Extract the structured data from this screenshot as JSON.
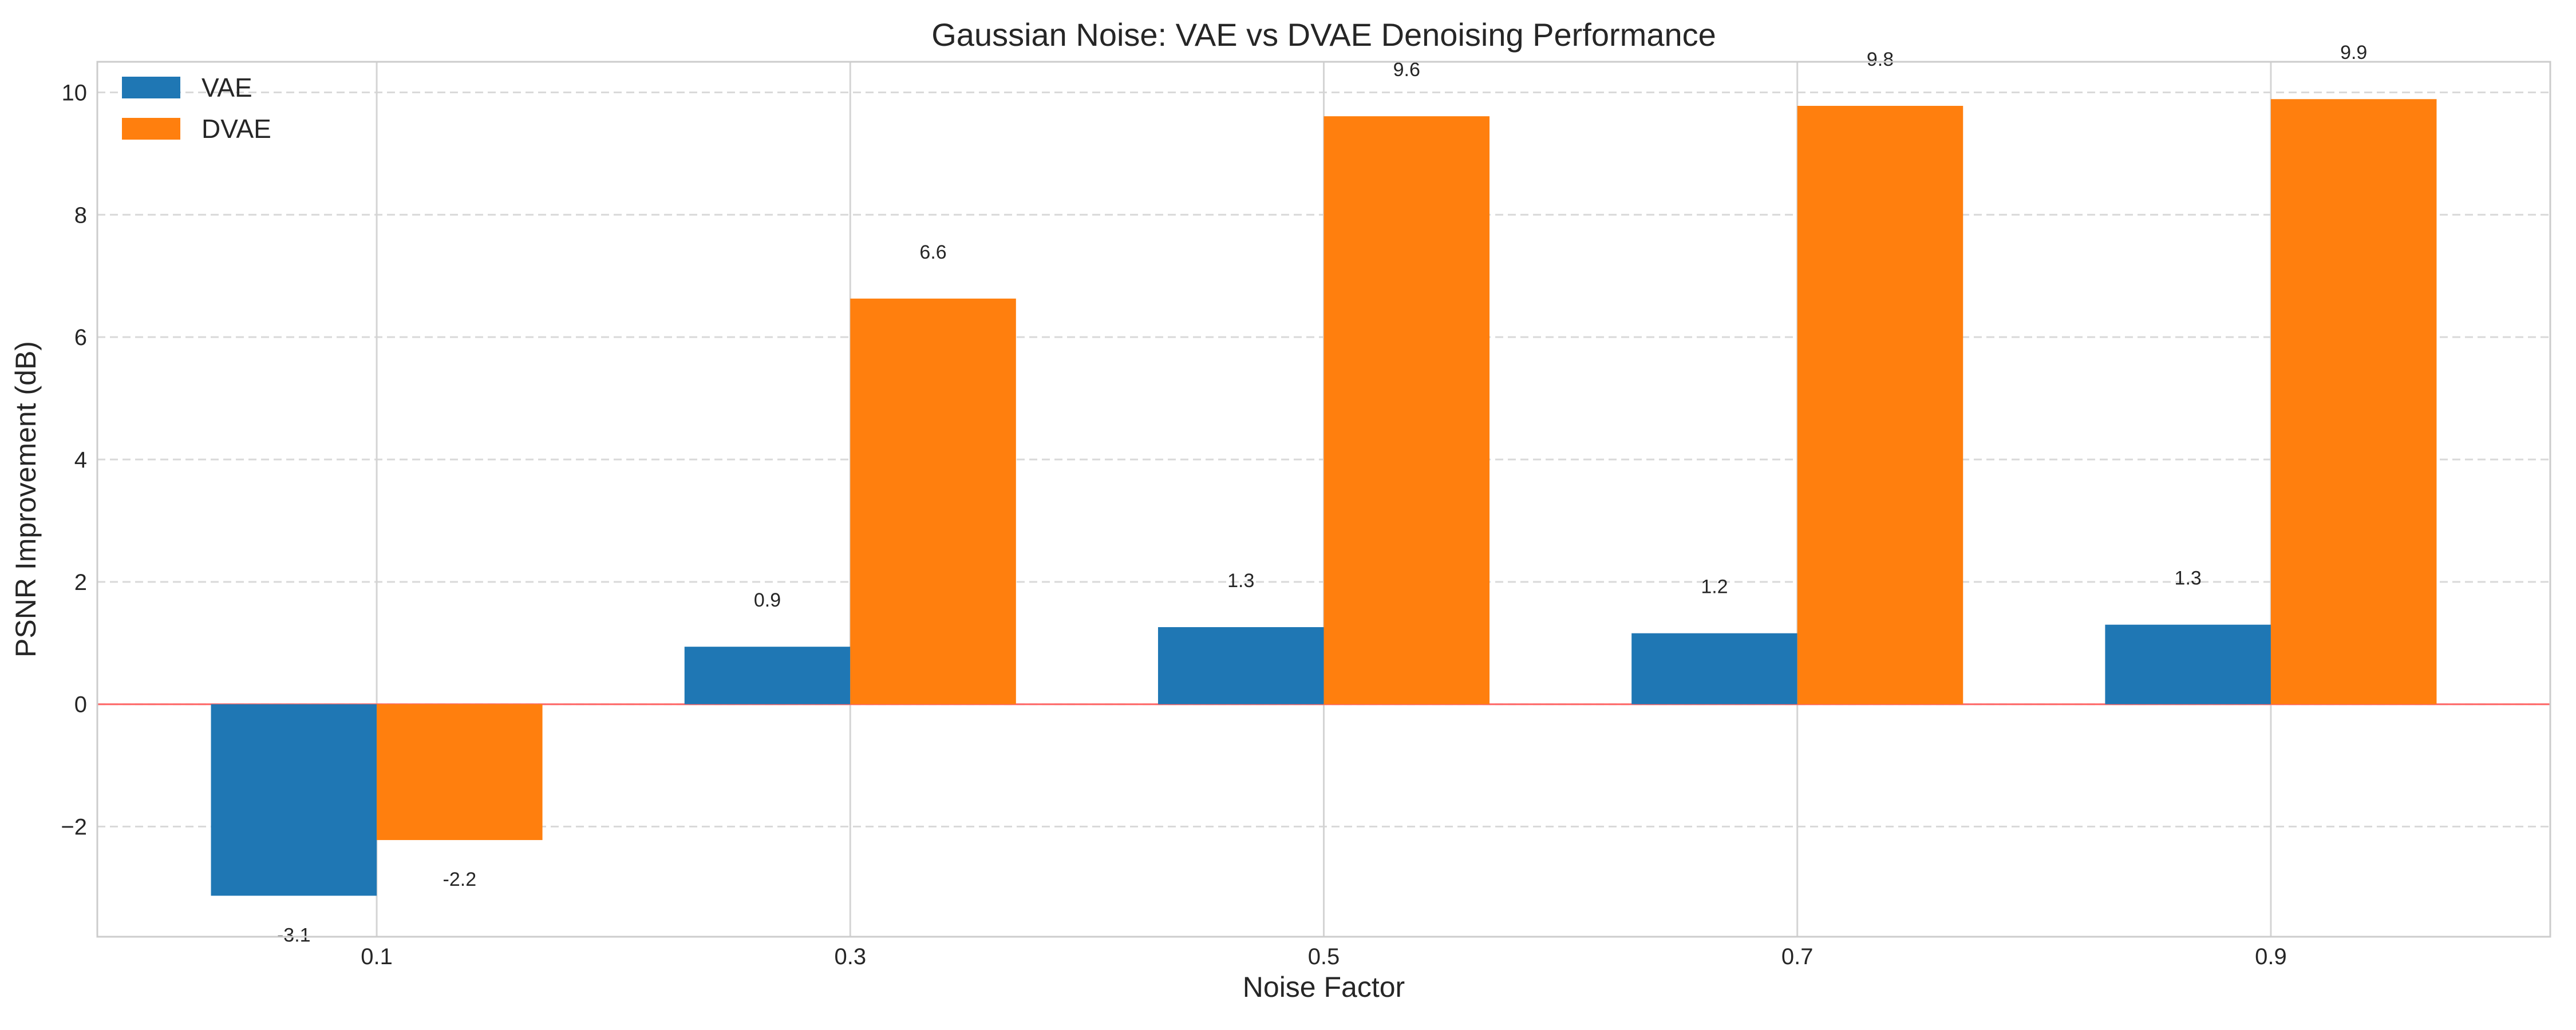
{
  "chart_data": {
    "type": "bar",
    "title": "Gaussian Noise: VAE vs DVAE Denoising Performance",
    "xlabel": "Noise Factor",
    "ylabel": "PSNR Improvement (dB)",
    "categories": [
      "0.1",
      "0.3",
      "0.5",
      "0.7",
      "0.9"
    ],
    "series": [
      {
        "name": "VAE",
        "color": "#1f77b4",
        "values": [
          -3.1,
          0.9,
          1.3,
          1.2,
          1.3
        ],
        "labels": [
          "-3.1",
          "0.9",
          "1.3",
          "1.2",
          "1.3"
        ],
        "plotted": [
          -3.13,
          0.94,
          1.26,
          1.16,
          1.3
        ]
      },
      {
        "name": "DVAE",
        "color": "#ff7f0e",
        "values": [
          -2.2,
          6.6,
          9.6,
          9.8,
          9.9
        ],
        "labels": [
          "-2.2",
          "6.6",
          "9.6",
          "9.8",
          "9.9"
        ],
        "plotted": [
          -2.22,
          6.63,
          9.61,
          9.78,
          9.89
        ]
      }
    ],
    "ylim": [
      -3.8,
      10.5
    ],
    "yticks": [
      -2,
      0,
      2,
      4,
      6,
      8,
      10
    ],
    "ytick_labels": [
      "−2",
      "0",
      "2",
      "4",
      "6",
      "8",
      "10"
    ],
    "grid": true,
    "legend_position": "top-left",
    "zero_line_color": "#ff6666"
  }
}
